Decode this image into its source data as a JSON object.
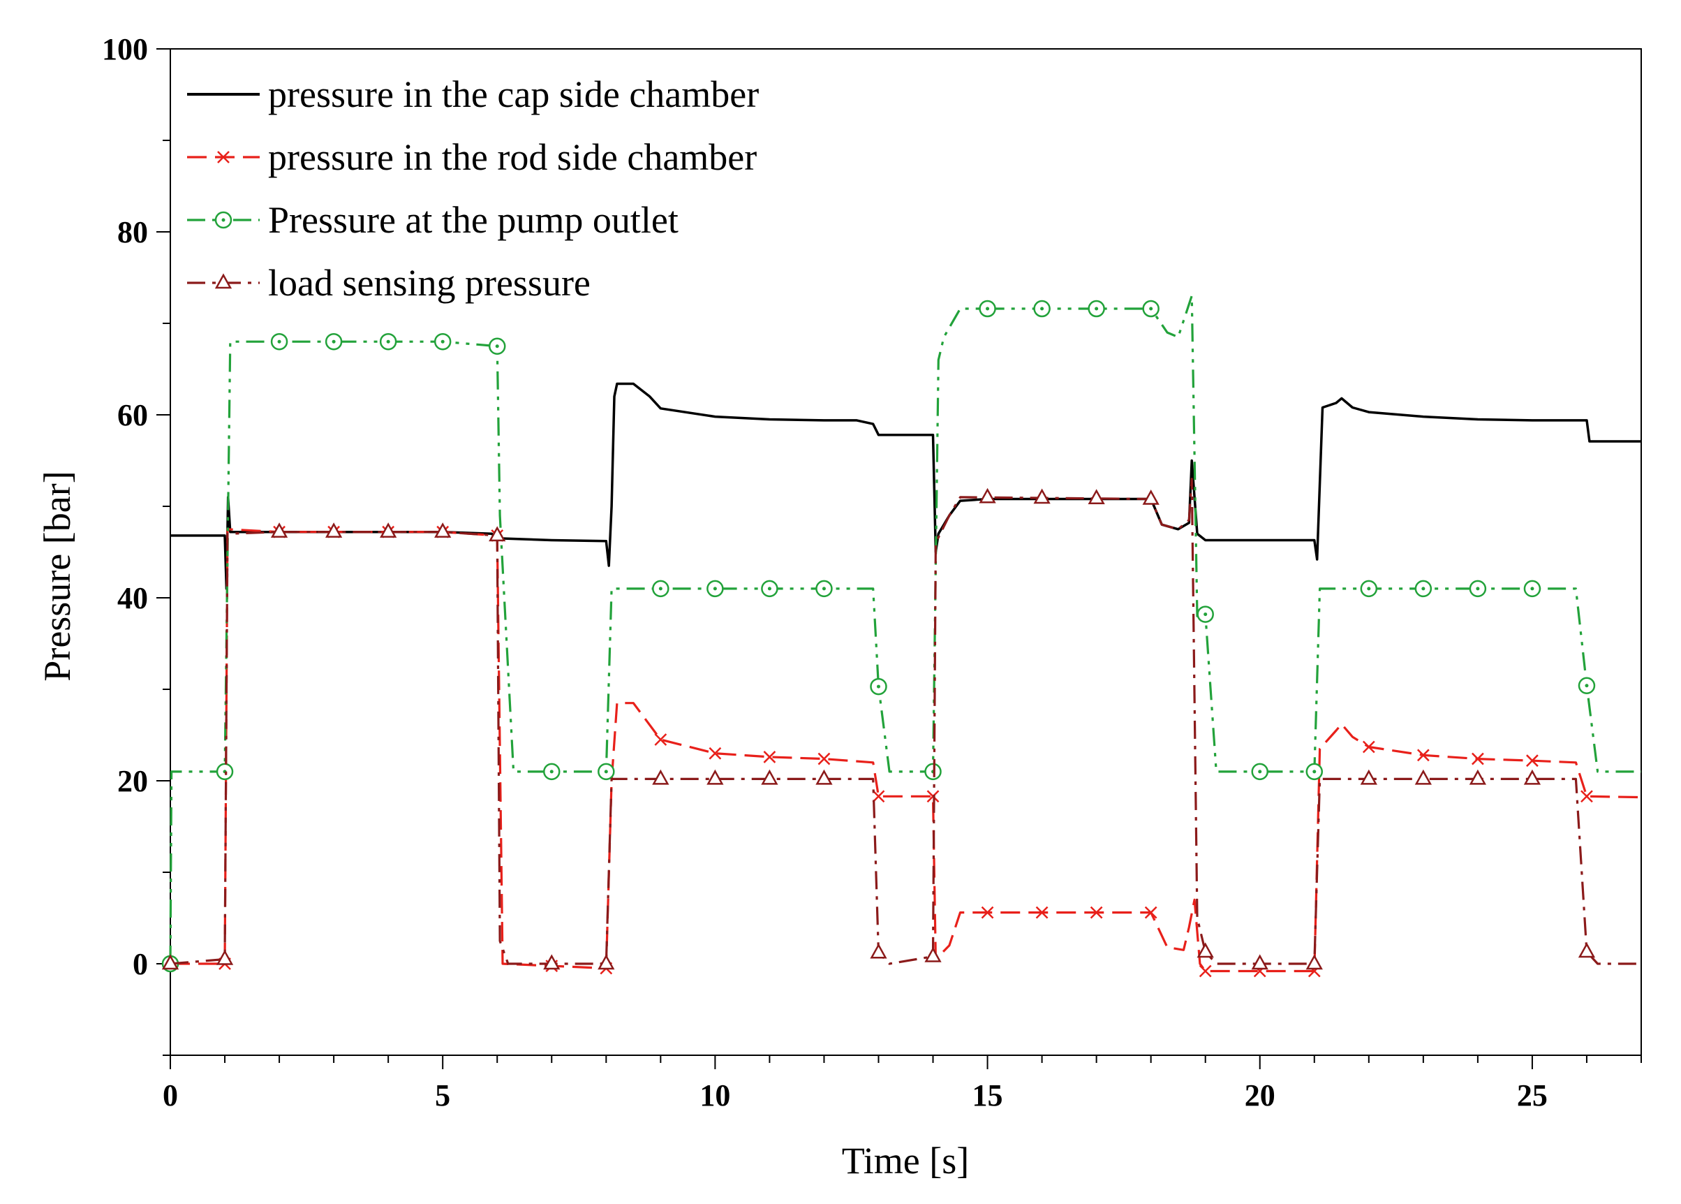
{
  "chart_data": {
    "type": "line",
    "title": "",
    "xlabel": "Time [s]",
    "ylabel": "Pressure [bar]",
    "xlim": [
      0,
      27
    ],
    "ylim": [
      -10,
      100
    ],
    "xticks": [
      0,
      5,
      10,
      15,
      20,
      25
    ],
    "yticks": [
      0,
      20,
      40,
      60,
      80,
      100
    ],
    "grid": false,
    "legend_position": "top-left",
    "series": [
      {
        "name": "pressure in the cap side chamber",
        "color": "#000000",
        "dash": "solid",
        "marker": "none",
        "points": [
          [
            0,
            46.8
          ],
          [
            1.0,
            46.8
          ],
          [
            1.03,
            41
          ],
          [
            1.06,
            51
          ],
          [
            1.1,
            47.2
          ],
          [
            2,
            47.2
          ],
          [
            5,
            47.2
          ],
          [
            5.9,
            47.0
          ],
          [
            6.0,
            46.5
          ],
          [
            7,
            46.3
          ],
          [
            8.0,
            46.2
          ],
          [
            8.05,
            43.5
          ],
          [
            8.1,
            50
          ],
          [
            8.15,
            62
          ],
          [
            8.2,
            63.4
          ],
          [
            8.5,
            63.4
          ],
          [
            8.8,
            62
          ],
          [
            9,
            60.7
          ],
          [
            10,
            59.8
          ],
          [
            11,
            59.5
          ],
          [
            12,
            59.4
          ],
          [
            12.6,
            59.4
          ],
          [
            12.9,
            59
          ],
          [
            13.0,
            57.8
          ],
          [
            14.0,
            57.8
          ],
          [
            14.05,
            45
          ],
          [
            14.1,
            47
          ],
          [
            14.3,
            49
          ],
          [
            14.5,
            50.6
          ],
          [
            15,
            50.8
          ],
          [
            18,
            50.8
          ],
          [
            18.2,
            48
          ],
          [
            18.5,
            47.5
          ],
          [
            18.7,
            48.2
          ],
          [
            18.75,
            55
          ],
          [
            18.85,
            47
          ],
          [
            19.0,
            46.3
          ],
          [
            20,
            46.3
          ],
          [
            21.0,
            46.3
          ],
          [
            21.05,
            44.2
          ],
          [
            21.15,
            60.8
          ],
          [
            21.4,
            61.3
          ],
          [
            21.5,
            61.8
          ],
          [
            21.7,
            60.8
          ],
          [
            22,
            60.3
          ],
          [
            23,
            59.8
          ],
          [
            24,
            59.5
          ],
          [
            25,
            59.4
          ],
          [
            25.8,
            59.4
          ],
          [
            26.0,
            59.4
          ],
          [
            26.05,
            57.1
          ],
          [
            27,
            57.1
          ]
        ]
      },
      {
        "name": "pressure in the rod side chamber",
        "color": "#e8201a",
        "dash": "28,12",
        "marker": "x",
        "marker_x": [
          0,
          1,
          2,
          3,
          4,
          5,
          6,
          7,
          8,
          9,
          10,
          11,
          12,
          13,
          14,
          15,
          16,
          17,
          18,
          19,
          20,
          21,
          22,
          23,
          24,
          25,
          26
        ],
        "points": [
          [
            0,
            0
          ],
          [
            1.0,
            0
          ],
          [
            1.05,
            47.5
          ],
          [
            2,
            47.2
          ],
          [
            5,
            47.2
          ],
          [
            6.0,
            46.8
          ],
          [
            6.1,
            0
          ],
          [
            8.0,
            -0.5
          ],
          [
            8.1,
            20
          ],
          [
            8.2,
            28.5
          ],
          [
            8.5,
            28.5
          ],
          [
            9,
            24.5
          ],
          [
            10,
            23
          ],
          [
            11,
            22.6
          ],
          [
            12,
            22.4
          ],
          [
            12.9,
            22
          ],
          [
            13.0,
            18.3
          ],
          [
            14.0,
            18.3
          ],
          [
            14.05,
            0.5
          ],
          [
            14.3,
            2
          ],
          [
            14.5,
            5.6
          ],
          [
            18,
            5.6
          ],
          [
            18.3,
            1.8
          ],
          [
            18.6,
            1.5
          ],
          [
            18.7,
            4
          ],
          [
            18.8,
            7
          ],
          [
            18.9,
            0
          ],
          [
            19.0,
            -0.8
          ],
          [
            21.0,
            -0.8
          ],
          [
            21.1,
            23.5
          ],
          [
            21.4,
            25.5
          ],
          [
            21.5,
            26.2
          ],
          [
            21.7,
            24.8
          ],
          [
            22,
            23.7
          ],
          [
            23,
            22.8
          ],
          [
            24,
            22.4
          ],
          [
            25,
            22.2
          ],
          [
            25.8,
            22.0
          ],
          [
            26.0,
            18.3
          ],
          [
            27,
            18.2
          ]
        ]
      },
      {
        "name": "Pressure at the pump outlet",
        "color": "#22a23a",
        "dash": "26,10,5,10,5,10",
        "marker": "circle-dot",
        "marker_x": [
          0,
          1,
          2,
          3,
          4,
          5,
          6,
          7,
          8,
          9,
          10,
          11,
          12,
          13,
          14,
          15,
          16,
          17,
          18,
          19,
          20,
          21,
          22,
          23,
          24,
          25,
          26
        ],
        "points": [
          [
            0,
            0
          ],
          [
            0.02,
            21
          ],
          [
            1.0,
            21
          ],
          [
            1.1,
            68
          ],
          [
            2,
            68
          ],
          [
            5,
            68
          ],
          [
            6.0,
            67.5
          ],
          [
            6.05,
            49
          ],
          [
            6.3,
            21
          ],
          [
            8.0,
            21
          ],
          [
            8.1,
            41
          ],
          [
            12.9,
            41
          ],
          [
            13.0,
            30.3
          ],
          [
            13.2,
            21
          ],
          [
            14.0,
            21
          ],
          [
            14.1,
            66
          ],
          [
            14.2,
            68.5
          ],
          [
            14.5,
            71.6
          ],
          [
            18,
            71.6
          ],
          [
            18.3,
            69
          ],
          [
            18.5,
            68.5
          ],
          [
            18.75,
            73
          ],
          [
            18.85,
            38
          ],
          [
            19.0,
            38.2
          ],
          [
            19.2,
            21
          ],
          [
            21.0,
            21
          ],
          [
            21.1,
            41
          ],
          [
            25.8,
            41
          ],
          [
            26.0,
            30.4
          ],
          [
            26.2,
            21
          ],
          [
            27,
            21
          ]
        ]
      },
      {
        "name": "load sensing pressure",
        "color": "#8b1a1a",
        "dash": "26,10,5,10",
        "marker": "triangle",
        "marker_x": [
          0,
          1,
          2,
          3,
          4,
          5,
          6,
          7,
          8,
          9,
          10,
          11,
          12,
          13,
          14,
          15,
          16,
          17,
          18,
          19,
          20,
          21,
          22,
          23,
          24,
          25,
          26
        ],
        "points": [
          [
            0,
            0
          ],
          [
            1.0,
            0.5
          ],
          [
            1.05,
            47
          ],
          [
            2,
            47.2
          ],
          [
            5,
            47.2
          ],
          [
            6.0,
            46.8
          ],
          [
            6.05,
            2.5
          ],
          [
            6.2,
            0
          ],
          [
            8.0,
            0
          ],
          [
            8.1,
            20.2
          ],
          [
            12.9,
            20.2
          ],
          [
            13.0,
            1.2
          ],
          [
            13.2,
            0
          ],
          [
            14.0,
            0.8
          ],
          [
            14.05,
            46
          ],
          [
            14.3,
            49
          ],
          [
            14.5,
            51
          ],
          [
            18,
            50.8
          ],
          [
            18.2,
            48
          ],
          [
            18.5,
            47.5
          ],
          [
            18.7,
            48.5
          ],
          [
            18.75,
            53
          ],
          [
            18.85,
            5
          ],
          [
            19.0,
            1.3
          ],
          [
            19.2,
            0
          ],
          [
            21.0,
            0
          ],
          [
            21.1,
            20.2
          ],
          [
            25.8,
            20.2
          ],
          [
            26.0,
            1.3
          ],
          [
            26.2,
            0
          ],
          [
            27,
            0
          ]
        ]
      }
    ]
  }
}
